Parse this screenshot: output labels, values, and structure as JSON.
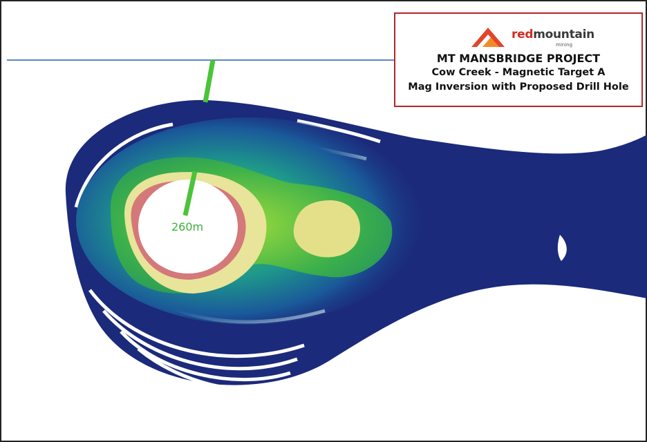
{
  "logo": {
    "brand_red": "red",
    "brand_dark": "mountain",
    "sub": "mining"
  },
  "title": {
    "lines": [
      "MT MANSBRIDGE PROJECT",
      "Cow Creek - Magnetic Target A",
      "Mag Inversion with Proposed Drill Hole"
    ]
  },
  "labels": {
    "depth": "260m"
  }
}
